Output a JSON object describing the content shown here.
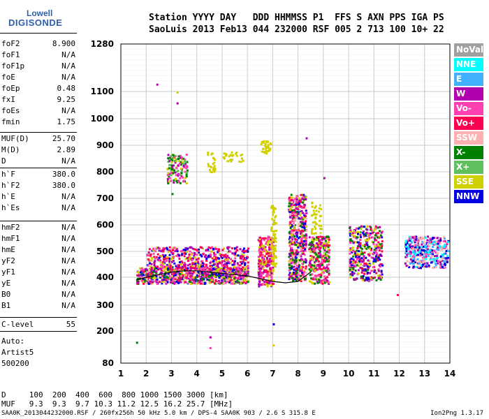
{
  "logo": {
    "line1": "Lowell",
    "line2": "DIGISONDE"
  },
  "header": {
    "labels": "Station YYYY DAY   DDD HHMMSS P1  FFS S AXN PPS IGA PS",
    "values": "SaoLuis 2013 Feb13 044 232000 RSF 005 2 713 100 10+ 22"
  },
  "params": [
    {
      "name": "foF2",
      "value": "8.900"
    },
    {
      "name": "foF1",
      "value": "N/A"
    },
    {
      "name": "foF1p",
      "value": "N/A"
    },
    {
      "name": "foE",
      "value": "N/A"
    },
    {
      "name": "foEp",
      "value": "0.48"
    },
    {
      "name": "fxI",
      "value": "9.25"
    },
    {
      "name": "foEs",
      "value": "N/A"
    },
    {
      "name": "fmin",
      "value": "1.75"
    },
    {
      "name": "MUF(D)",
      "value": "25.70"
    },
    {
      "name": "M(D)",
      "value": "2.89"
    },
    {
      "name": "D",
      "value": "N/A"
    },
    {
      "name": "h`F",
      "value": "380.0"
    },
    {
      "name": "h`F2",
      "value": "380.0"
    },
    {
      "name": "h`E",
      "value": "N/A"
    },
    {
      "name": "h`Es",
      "value": "N/A"
    },
    {
      "name": "hmF2",
      "value": "N/A"
    },
    {
      "name": "hmF1",
      "value": "N/A"
    },
    {
      "name": "hmE",
      "value": "N/A"
    },
    {
      "name": "yF2",
      "value": "N/A"
    },
    {
      "name": "yF1",
      "value": "N/A"
    },
    {
      "name": "yE",
      "value": "N/A"
    },
    {
      "name": "B0",
      "value": "N/A"
    },
    {
      "name": "B1",
      "value": "N/A"
    },
    {
      "name": "C-level",
      "value": "55"
    }
  ],
  "auto": {
    "line1": "Auto:",
    "line2": "Artist5",
    "line3": "500200"
  },
  "legend": [
    {
      "label": "NoVal",
      "color": "#a0a0a0"
    },
    {
      "label": "NNE",
      "color": "#00ffff"
    },
    {
      "label": "E",
      "color": "#40b0ff"
    },
    {
      "label": "W",
      "color": "#b000b0"
    },
    {
      "label": "Vo-",
      "color": "#ff40b0"
    },
    {
      "label": "Vo+",
      "color": "#ff0050"
    },
    {
      "label": "SSW",
      "color": "#ffb0b0"
    },
    {
      "label": "X-",
      "color": "#008000"
    },
    {
      "label": "X+",
      "color": "#60c060"
    },
    {
      "label": "SSE",
      "color": "#d0d000"
    },
    {
      "label": "NNW",
      "color": "#0000e0"
    }
  ],
  "muf_table": {
    "d_row": "D     100  200  400  600  800 1000 1500 3000 [km]",
    "muf_row": "MUF   9.3  9.3  9.7 10.3 11.2 12.5 16.2 25.7 [MHz]"
  },
  "footer": {
    "left": "SAA0K_2013044232000.RSF / 260fx256h 50 kHz 5.0 km / DPS-4 SAA0K 903 / 2.6 S 315.8 E",
    "right": "Ion2Png 1.3.17"
  },
  "chart_data": {
    "type": "scatter",
    "x_ticks": [
      1,
      2,
      3,
      4,
      5,
      6,
      7,
      8,
      9,
      10,
      11,
      12,
      13,
      14
    ],
    "y_ticks": [
      80,
      200,
      300,
      400,
      500,
      600,
      700,
      800,
      900,
      1000,
      1100,
      1280
    ],
    "xlim": [
      1,
      14
    ],
    "ylim": [
      80,
      1280
    ],
    "xlabel": "",
    "ylabel": "",
    "grid": true,
    "trace": {
      "x": [
        1.6,
        2.0,
        2.5,
        3.0,
        3.5,
        4.0,
        4.5,
        5.0,
        5.5,
        6.0,
        6.5,
        7.0,
        7.5,
        8.0,
        8.5
      ],
      "y": [
        390,
        400,
        410,
        420,
        425,
        425,
        420,
        415,
        410,
        405,
        395,
        385,
        380,
        385,
        420
      ]
    }
  }
}
